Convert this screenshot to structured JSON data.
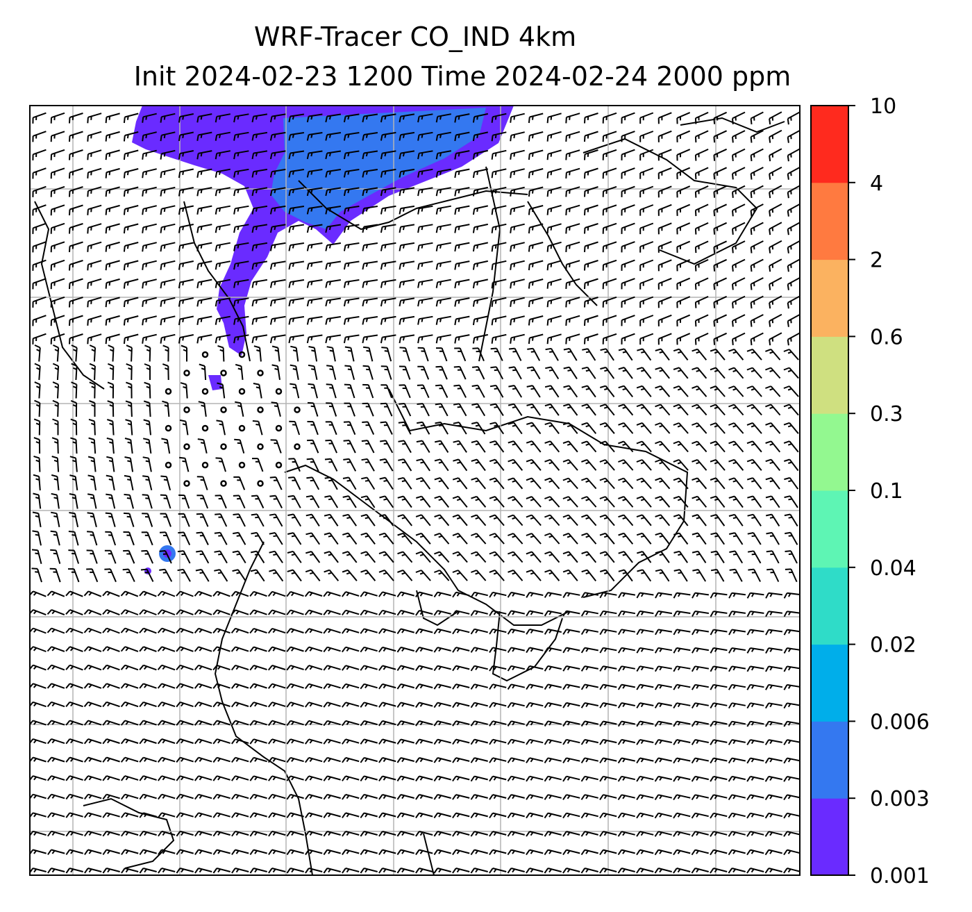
{
  "title": {
    "line1": "WRF-Tracer CO_IND 4km",
    "line2": "Init 2024-02-23 1200 Time 2024-02-24 2000 ppm"
  },
  "colorbar": {
    "levels": [
      "0.001",
      "0.003",
      "0.006",
      "0.02",
      "0.04",
      "0.1",
      "0.3",
      "0.6",
      "2",
      "4",
      "10"
    ],
    "colors": [
      "#6a2bff",
      "#3478f0",
      "#00aeea",
      "#2fdcc8",
      "#5ef5b4",
      "#93f890",
      "#cfe080",
      "#fbb260",
      "#ff7a40",
      "#ff2a1e"
    ]
  },
  "map": {
    "plume_colors": [
      "#6a2bff",
      "#3478f0"
    ],
    "gridlines": true,
    "barb_color": "#000000"
  }
}
